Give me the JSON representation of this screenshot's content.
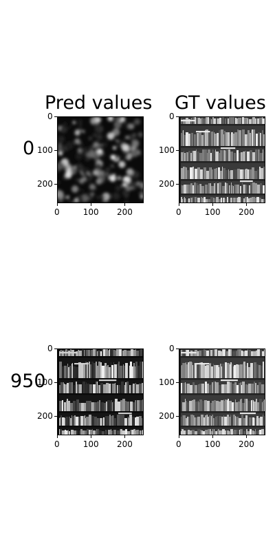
{
  "chart_data": {
    "type": "image-grid",
    "column_titles": [
      "Pred values",
      "GT values"
    ],
    "row_labels": [
      "0",
      "950"
    ],
    "x_ticks": [
      "0",
      "100",
      "200"
    ],
    "y_ticks": [
      "0",
      "100",
      "200"
    ],
    "image_extent": [
      0,
      256
    ],
    "panels": [
      {
        "row": "0",
        "column": "Pred values",
        "content": "noise"
      },
      {
        "row": "0",
        "column": "GT values",
        "content": "bookshelf"
      },
      {
        "row": "950",
        "column": "Pred values",
        "content": "bookshelf-dark"
      },
      {
        "row": "950",
        "column": "GT values",
        "content": "bookshelf"
      }
    ]
  }
}
